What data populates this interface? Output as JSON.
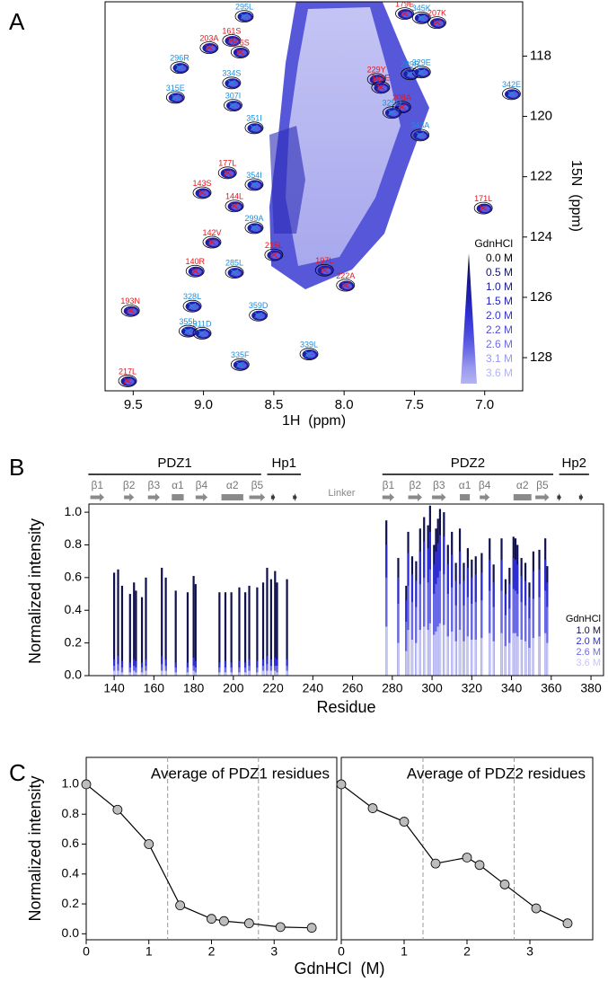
{
  "panel_labels": [
    "A",
    "B",
    "C"
  ],
  "chart_data": [
    {
      "type": "nmr",
      "xlabel": "1H  (ppm)",
      "ylabel": "15N  (ppm)",
      "xlim": [
        9.7,
        6.73
      ],
      "ylim": [
        116.2,
        129.1
      ],
      "xticks": [
        9.5,
        {
          "value": 9,
          "label": "9.0"
        },
        8.5,
        {
          "value": 8,
          "label": "8.0"
        },
        7.5,
        {
          "value": 7,
          "label": "7.0"
        }
      ],
      "yticks": [
        118,
        120,
        122,
        124,
        126,
        128
      ],
      "legend_title": "GdnHCl",
      "series": [
        {
          "name": "0.0 M",
          "color": "#000000"
        },
        {
          "name": "0.5 M",
          "color": "#141466"
        },
        {
          "name": "1.0 M",
          "color": "#1a1a96"
        },
        {
          "name": "1.5 M",
          "color": "#2222bb"
        },
        {
          "name": "2.0 M",
          "color": "#3434d6"
        },
        {
          "name": "2.2 M",
          "color": "#4c4cde"
        },
        {
          "name": "2.6 M",
          "color": "#6e6ee6"
        },
        {
          "name": "3.1 M",
          "color": "#9898ee"
        },
        {
          "name": "3.6 M",
          "color": "#b4b4f2"
        }
      ],
      "peaks": {
        "labels": [
          "295L",
          "179E",
          "345K",
          "207K",
          "161S",
          "203A",
          "196S",
          "296R",
          "334S",
          "229Y",
          "289R",
          "329E",
          "151E",
          "342E",
          "315E",
          "307I",
          "208A",
          "325D",
          "351I",
          "343A",
          "177L",
          "143S",
          "354I",
          "144L",
          "171L",
          "299A",
          "142V",
          "215L",
          "140R",
          "197L",
          "285L",
          "222A",
          "193N",
          "328L",
          "359D",
          "355L",
          "311D",
          "335F",
          "339L",
          "217L"
        ],
        "x": [
          8.71,
          7.57,
          7.45,
          7.34,
          8.8,
          8.96,
          8.74,
          9.17,
          8.8,
          7.77,
          7.53,
          7.45,
          7.74,
          6.81,
          9.2,
          8.79,
          7.59,
          7.66,
          8.64,
          7.46,
          8.83,
          9.01,
          8.64,
          8.78,
          7.01,
          8.64,
          8.94,
          8.5,
          9.06,
          8.14,
          8.78,
          7.99,
          9.52,
          9.08,
          8.61,
          9.11,
          9.01,
          8.74,
          8.25,
          9.54
        ],
        "y": [
          116.68,
          116.59,
          116.73,
          116.89,
          117.48,
          117.72,
          117.87,
          118.38,
          118.89,
          118.77,
          118.59,
          118.53,
          119.04,
          119.25,
          119.37,
          119.63,
          119.69,
          119.87,
          120.38,
          120.62,
          121.87,
          122.53,
          122.26,
          122.97,
          123.04,
          123.69,
          124.17,
          124.59,
          125.13,
          125.1,
          125.17,
          125.6,
          126.44,
          126.29,
          126.59,
          127.12,
          127.19,
          128.23,
          127.88,
          128.77
        ],
        "colors": [
          "#1c8fdc",
          "#e8141c",
          "#1c8fdc",
          "#e8141c",
          "#e8141c",
          "#e8141c",
          "#e8141c",
          "#1c8fdc",
          "#1c8fdc",
          "#e8141c",
          "#1c8fdc",
          "#1c8fdc",
          "#e8141c",
          "#1c8fdc",
          "#1c8fdc",
          "#1c8fdc",
          "#e8141c",
          "#1c8fdc",
          "#1c8fdc",
          "#1c8fdc",
          "#e8141c",
          "#e8141c",
          "#1c8fdc",
          "#e8141c",
          "#e8141c",
          "#1c8fdc",
          "#e8141c",
          "#e8141c",
          "#e8141c",
          "#e8141c",
          "#1c8fdc",
          "#e8141c",
          "#e8141c",
          "#1c8fdc",
          "#1c8fdc",
          "#1c8fdc",
          "#1c8fdc",
          "#1c8fdc",
          "#1c8fdc",
          "#e8141c"
        ]
      }
    },
    {
      "type": "bar",
      "ylabel": "Normalized intensity",
      "xlabel": "Residue",
      "xlim": [
        127.3,
        386.3
      ],
      "ylim": [
        0,
        1.05
      ],
      "xticks": [
        140,
        160,
        180,
        200,
        220,
        240,
        260,
        280,
        300,
        320,
        340,
        360,
        380
      ],
      "yticks": [
        {
          "value": 0,
          "label": "0.0"
        },
        0.2,
        0.4,
        0.6,
        0.8,
        {
          "value": 1,
          "label": "1.0"
        }
      ],
      "legend_title": "GdnHCl",
      "x": [
        140,
        142,
        144,
        148,
        150,
        151,
        154,
        156,
        164,
        166,
        171,
        177,
        180,
        181,
        193,
        196,
        199,
        203,
        206,
        208,
        212,
        215,
        217,
        219,
        221,
        222,
        227,
        277,
        283,
        287,
        288,
        290,
        292,
        294,
        296,
        298,
        299,
        301,
        302,
        303,
        304,
        306,
        308,
        310,
        312,
        314,
        316,
        318,
        320,
        322,
        325,
        329,
        331,
        335,
        337,
        339,
        341,
        342,
        343,
        345,
        347,
        349,
        351,
        354,
        357,
        358
      ],
      "series": [
        {
          "name": "1.0 M",
          "color": "#10104e",
          "values": [
            0.63,
            0.65,
            0.55,
            0.5,
            0.57,
            0.52,
            0.48,
            0.6,
            0.66,
            0.6,
            0.52,
            0.51,
            0.61,
            0.56,
            0.51,
            0.51,
            0.51,
            0.54,
            0.51,
            0.55,
            0.54,
            0.57,
            0.66,
            0.59,
            0.64,
            0.57,
            0.59,
            0.95,
            0.72,
            0.55,
            0.88,
            0.73,
            0.7,
            0.9,
            0.97,
            0.92,
            1.04,
            0.8,
            0.9,
            0.96,
            1.02,
            1.0,
            0.8,
            0.88,
            0.69,
            0.9,
            0.69,
            0.78,
            0.71,
            0.73,
            0.75,
            0.84,
            0.68,
            0.84,
            0.59,
            0.66,
            0.85,
            0.84,
            0.8,
            0.72,
            0.69,
            0.57,
            0.76,
            0.77,
            0.84,
            0.67
          ]
        },
        {
          "name": "2.0 M",
          "color": "#2e2ed8",
          "values": [
            0.1,
            0.12,
            0.09,
            0.08,
            0.1,
            0.09,
            0.08,
            0.1,
            0.12,
            0.1,
            0.08,
            0.08,
            0.11,
            0.09,
            0.08,
            0.09,
            0.08,
            0.09,
            0.08,
            0.1,
            0.09,
            0.1,
            0.12,
            0.1,
            0.11,
            0.1,
            0.1,
            0.8,
            0.6,
            0.46,
            0.75,
            0.62,
            0.58,
            0.76,
            0.82,
            0.78,
            0.88,
            0.68,
            0.76,
            0.81,
            0.86,
            0.85,
            0.68,
            0.74,
            0.58,
            0.76,
            0.58,
            0.66,
            0.6,
            0.62,
            0.63,
            0.71,
            0.57,
            0.71,
            0.5,
            0.56,
            0.72,
            0.71,
            0.68,
            0.61,
            0.58,
            0.48,
            0.64,
            0.65,
            0.71,
            0.57
          ]
        },
        {
          "name": "2.6 M",
          "color": "#6c6ce8",
          "values": [
            0.06,
            0.07,
            0.05,
            0.05,
            0.06,
            0.05,
            0.05,
            0.06,
            0.07,
            0.06,
            0.05,
            0.05,
            0.06,
            0.05,
            0.05,
            0.05,
            0.05,
            0.05,
            0.05,
            0.06,
            0.05,
            0.06,
            0.07,
            0.06,
            0.06,
            0.06,
            0.06,
            0.6,
            0.44,
            0.33,
            0.55,
            0.45,
            0.42,
            0.56,
            0.6,
            0.57,
            0.65,
            0.5,
            0.56,
            0.6,
            0.64,
            0.62,
            0.5,
            0.54,
            0.43,
            0.56,
            0.43,
            0.48,
            0.44,
            0.45,
            0.46,
            0.52,
            0.42,
            0.52,
            0.37,
            0.41,
            0.53,
            0.52,
            0.5,
            0.45,
            0.43,
            0.35,
            0.47,
            0.48,
            0.52,
            0.42
          ]
        },
        {
          "name": "3.6 M",
          "color": "#c6c6f4",
          "values": [
            0.03,
            0.03,
            0.02,
            0.02,
            0.03,
            0.02,
            0.02,
            0.03,
            0.03,
            0.03,
            0.02,
            0.02,
            0.03,
            0.02,
            0.02,
            0.02,
            0.02,
            0.02,
            0.02,
            0.03,
            0.02,
            0.03,
            0.03,
            0.03,
            0.03,
            0.02,
            0.03,
            0.3,
            0.2,
            0.15,
            0.28,
            0.22,
            0.2,
            0.28,
            0.3,
            0.28,
            0.32,
            0.25,
            0.27,
            0.3,
            0.32,
            0.31,
            0.24,
            0.27,
            0.21,
            0.28,
            0.21,
            0.24,
            0.22,
            0.22,
            0.23,
            0.26,
            0.21,
            0.26,
            0.18,
            0.2,
            0.26,
            0.26,
            0.24,
            0.22,
            0.21,
            0.17,
            0.23,
            0.24,
            0.26,
            0.2
          ]
        }
      ],
      "domains": [
        {
          "label": "PDZ1",
          "start": 127,
          "end": 214
        },
        {
          "label": "Hp1",
          "start": 217,
          "end": 234
        },
        {
          "label": "PDZ2",
          "start": 275,
          "end": 361
        },
        {
          "label": "Hp2",
          "start": 364,
          "end": 379
        }
      ],
      "elements": [
        {
          "label": "β1",
          "kind": "strand",
          "start": 128,
          "end": 135
        },
        {
          "label": "β2",
          "kind": "strand",
          "start": 145,
          "end": 150
        },
        {
          "label": "β3",
          "kind": "strand",
          "start": 157,
          "end": 163
        },
        {
          "label": "α1",
          "kind": "helix",
          "start": 169,
          "end": 175
        },
        {
          "label": "β4",
          "kind": "strand",
          "start": 181,
          "end": 187
        },
        {
          "label": "α2",
          "kind": "helix",
          "start": 194,
          "end": 205
        },
        {
          "label": "β5",
          "kind": "strand",
          "start": 208,
          "end": 216
        },
        {
          "kind": "strand",
          "start": 219,
          "end": 221
        },
        {
          "kind": "strand",
          "start": 230,
          "end": 232
        },
        {
          "label": "β1",
          "kind": "strand",
          "start": 275,
          "end": 281
        },
        {
          "label": "β2",
          "kind": "strand",
          "start": 288,
          "end": 295
        },
        {
          "label": "β3",
          "kind": "strand",
          "start": 300,
          "end": 307
        },
        {
          "label": "α1",
          "kind": "helix",
          "start": 314,
          "end": 319
        },
        {
          "label": "β4",
          "kind": "strand",
          "start": 324,
          "end": 329
        },
        {
          "label": "α2",
          "kind": "helix",
          "start": 341,
          "end": 350
        },
        {
          "label": "β5",
          "kind": "strand",
          "start": 352,
          "end": 359
        },
        {
          "kind": "strand",
          "start": 363,
          "end": 365
        },
        {
          "kind": "strand",
          "start": 374,
          "end": 376
        }
      ],
      "annotation": "Linker"
    },
    {
      "type": "line",
      "title": "Average of PDZ1 residues",
      "ylabel": "Normalized intensity",
      "xlabel": "GdnHCl  (M)",
      "x": [
        0,
        0.5,
        1,
        1.5,
        2,
        2.2,
        2.6,
        3.1,
        3.6
      ],
      "values": [
        1.0,
        0.83,
        0.6,
        0.19,
        0.1,
        0.085,
        0.07,
        0.045,
        0.04
      ],
      "color": "#000000",
      "marker_color": "#bdbdbd",
      "xlim": [
        0,
        4
      ],
      "ylim": [
        -0.04,
        1.18
      ],
      "xticks": [
        0,
        1,
        2,
        3
      ],
      "yticks": [
        {
          "value": 0,
          "label": "0.0"
        },
        0.2,
        0.4,
        0.6,
        0.8,
        {
          "value": 1,
          "label": "1.0"
        }
      ],
      "vlines": [
        1.3,
        2.75
      ]
    },
    {
      "type": "line",
      "title": "Average of PDZ2 residues",
      "x": [
        0,
        0.5,
        1,
        1.5,
        2,
        2.2,
        2.6,
        3.1,
        3.6
      ],
      "values": [
        1.0,
        0.84,
        0.75,
        0.47,
        0.51,
        0.46,
        0.33,
        0.17,
        0.07
      ],
      "color": "#000000",
      "marker_color": "#bdbdbd",
      "xlim": [
        0,
        4
      ],
      "ylim": [
        -0.04,
        1.18
      ],
      "xticks": [
        0,
        1,
        2,
        3
      ],
      "vlines": [
        1.3,
        2.75
      ]
    }
  ]
}
